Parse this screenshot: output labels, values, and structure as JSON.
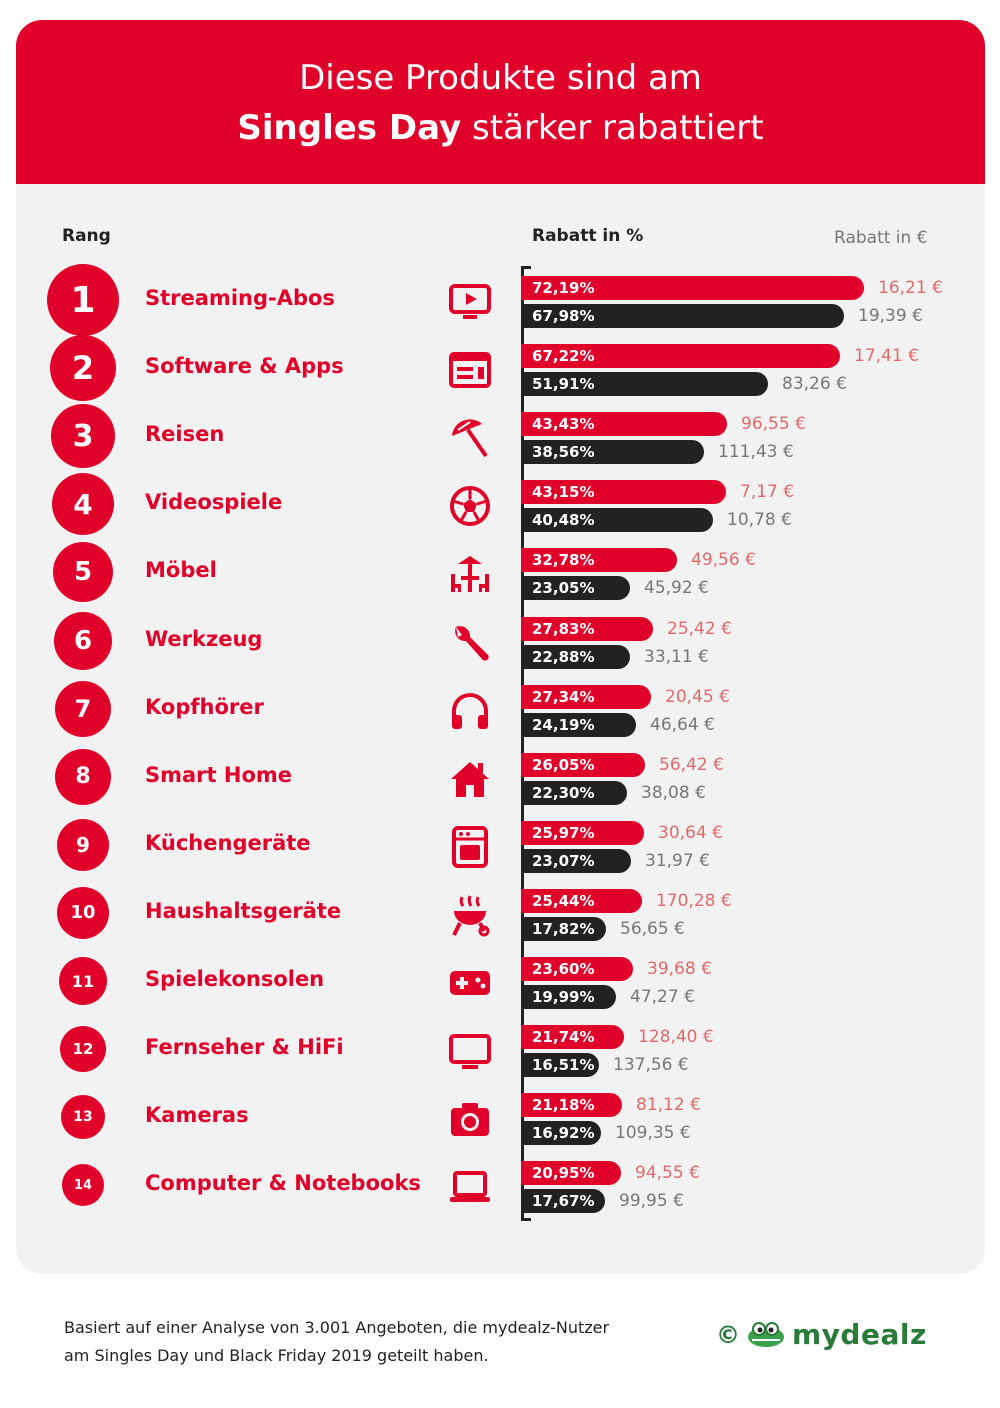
{
  "header": {
    "line1": "Diese Produkte sind am",
    "line2_bold": "Singles Day",
    "line2_rest": " stärker rabattiert"
  },
  "columns": {
    "rank": "Rang",
    "percent": "Rabatt in %",
    "euro": "Rabatt in €"
  },
  "footer": {
    "line1": "Basiert auf einer Analyse von 3.001 Angeboten, die mydealz-Nutzer",
    "line2": "am Singles Day und Black Friday 2019 geteilt haben."
  },
  "logo": {
    "copyright": "©",
    "brand": "mydealz"
  },
  "colors": {
    "singles_day": "#e0002a",
    "black_friday": "#222222"
  },
  "chart_data": {
    "type": "bar",
    "orientation": "horizontal",
    "xlim": [
      0,
      80
    ],
    "series_order": [
      "Singles Day",
      "Black Friday"
    ],
    "rows": [
      {
        "rank": "1",
        "category": "Streaming-Abos",
        "icon": "tv-play-icon",
        "sd_pct": 72.19,
        "sd_pct_label": "72,19%",
        "bf_pct": 67.98,
        "bf_pct_label": "67,98%",
        "sd_eur": "16,21 €",
        "bf_eur": "19,39 €"
      },
      {
        "rank": "2",
        "category": "Software & Apps",
        "icon": "app-window-icon",
        "sd_pct": 67.22,
        "sd_pct_label": "67,22%",
        "bf_pct": 51.91,
        "bf_pct_label": "51,91%",
        "sd_eur": "17,41 €",
        "bf_eur": "83,26 €"
      },
      {
        "rank": "3",
        "category": "Reisen",
        "icon": "beach-umbrella-icon",
        "sd_pct": 43.43,
        "sd_pct_label": "43,43%",
        "bf_pct": 38.56,
        "bf_pct_label": "38,56%",
        "sd_eur": "96,55 €",
        "bf_eur": "111,43 €"
      },
      {
        "rank": "4",
        "category": "Videospiele",
        "icon": "soccer-ball-icon",
        "sd_pct": 43.15,
        "sd_pct_label": "43,15%",
        "bf_pct": 40.48,
        "bf_pct_label": "40,48%",
        "sd_eur": "7,17 €",
        "bf_eur": "10,78 €"
      },
      {
        "rank": "5",
        "category": "Möbel",
        "icon": "garden-furniture-icon",
        "sd_pct": 32.78,
        "sd_pct_label": "32,78%",
        "bf_pct": 23.05,
        "bf_pct_label": "23,05%",
        "sd_eur": "49,56 €",
        "bf_eur": "45,92 €"
      },
      {
        "rank": "6",
        "category": "Werkzeug",
        "icon": "wrench-icon",
        "sd_pct": 27.83,
        "sd_pct_label": "27,83%",
        "bf_pct": 22.88,
        "bf_pct_label": "22,88%",
        "sd_eur": "25,42 €",
        "bf_eur": "33,11 €"
      },
      {
        "rank": "7",
        "category": "Kopfhörer",
        "icon": "headphones-icon",
        "sd_pct": 27.34,
        "sd_pct_label": "27,34%",
        "bf_pct": 24.19,
        "bf_pct_label": "24,19%",
        "sd_eur": "20,45 €",
        "bf_eur": "46,64 €"
      },
      {
        "rank": "8",
        "category": "Smart Home",
        "icon": "house-icon",
        "sd_pct": 26.05,
        "sd_pct_label": "26,05%",
        "bf_pct": 22.3,
        "bf_pct_label": "22,30%",
        "sd_eur": "56,42 €",
        "bf_eur": "38,08 €"
      },
      {
        "rank": "9",
        "category": "Küchengeräte",
        "icon": "oven-icon",
        "sd_pct": 25.97,
        "sd_pct_label": "25,97%",
        "bf_pct": 23.07,
        "bf_pct_label": "23,07%",
        "sd_eur": "30,64 €",
        "bf_eur": "31,97 €"
      },
      {
        "rank": "10",
        "category": "Haushaltsgeräte",
        "icon": "grill-icon",
        "sd_pct": 25.44,
        "sd_pct_label": "25,44%",
        "bf_pct": 17.82,
        "bf_pct_label": "17,82%",
        "sd_eur": "170,28 €",
        "bf_eur": "56,65 €"
      },
      {
        "rank": "11",
        "category": "Spielekonsolen",
        "icon": "gamepad-icon",
        "sd_pct": 23.6,
        "sd_pct_label": "23,60%",
        "bf_pct": 19.99,
        "bf_pct_label": "19,99%",
        "sd_eur": "39,68 €",
        "bf_eur": "47,27 €"
      },
      {
        "rank": "12",
        "category": "Fernseher & HiFi",
        "icon": "monitor-icon",
        "sd_pct": 21.74,
        "sd_pct_label": "21,74%",
        "bf_pct": 16.51,
        "bf_pct_label": "16,51%",
        "sd_eur": "128,40 €",
        "bf_eur": "137,56 €"
      },
      {
        "rank": "13",
        "category": "Kameras",
        "icon": "camera-icon",
        "sd_pct": 21.18,
        "sd_pct_label": "21,18%",
        "bf_pct": 16.92,
        "bf_pct_label": "16,92%",
        "sd_eur": "81,12 €",
        "bf_eur": "109,35 €"
      },
      {
        "rank": "14",
        "category": "Computer & Notebooks",
        "icon": "laptop-icon",
        "sd_pct": 20.95,
        "sd_pct_label": "20,95%",
        "bf_pct": 17.67,
        "bf_pct_label": "17,67%",
        "sd_eur": "94,55 €",
        "bf_eur": "99,95 €"
      }
    ]
  }
}
